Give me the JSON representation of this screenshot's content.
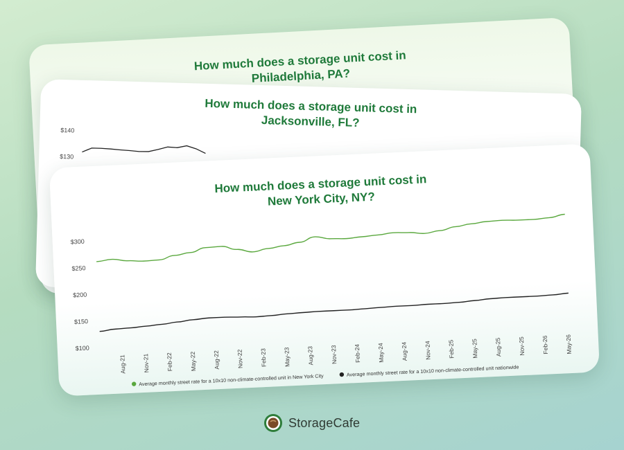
{
  "cards": {
    "back": {
      "title_line1": "How much does a storage unit cost in",
      "title_line2": "Philadelphia, PA?"
    },
    "middle": {
      "title_line1": "How much does a storage unit cost in",
      "title_line2": "Jacksonville, FL?",
      "y_tick_labels": [
        "$140",
        "$130"
      ]
    },
    "front": {
      "title_line1": "How much does a storage unit cost in",
      "title_line2": "New York City, NY?"
    }
  },
  "chart_data": [
    {
      "type": "line",
      "title": "How much does a storage unit cost in Jacksonville, FL?",
      "partially_visible": true,
      "y_ticks": [
        140,
        130
      ],
      "ylim": [
        125,
        140
      ],
      "series": [
        {
          "color": "#222222",
          "values": [
            129,
            131,
            131,
            130.8,
            130.5,
            130.3,
            130,
            130.1,
            131.2,
            132.5,
            132.3,
            133.3,
            132,
            130
          ]
        }
      ]
    },
    {
      "type": "line",
      "title": "How much does a storage unit cost in New York City, NY?",
      "xlabel": "",
      "ylabel": "",
      "ylim": [
        100,
        300
      ],
      "y_ticks": [
        300,
        250,
        200,
        150,
        100
      ],
      "y_tick_labels": [
        "$300",
        "$250",
        "$200",
        "$150",
        "$100"
      ],
      "x_tick_labels": [
        "Aug-21",
        "Nov-21",
        "Feb-22",
        "May-22",
        "Aug-22",
        "Nov-22",
        "Feb-23",
        "May-23",
        "Aug-23",
        "Nov-23",
        "Feb-24",
        "May-24",
        "Aug-24",
        "Nov-24",
        "Feb-25",
        "May-25",
        "Aug-25",
        "Nov-25",
        "Feb-26",
        "May-26"
      ],
      "legend_position": "bottom",
      "grid": false,
      "series": [
        {
          "name": "Average monthly street rate for a 10x10 non-climate-controlled unit in New York City",
          "color": "#5aa83e",
          "values": [
            261,
            264,
            260,
            258,
            259,
            266,
            270,
            278,
            279,
            272,
            266,
            271,
            275,
            280,
            289,
            284,
            283,
            285,
            287,
            290,
            289,
            286,
            290,
            296,
            300,
            303,
            304,
            303,
            303,
            305,
            310
          ]
        },
        {
          "name": "Average monthly street rate for a 10x10 non-climate-controlled unit nationwide",
          "color": "#222222",
          "values": [
            130,
            133,
            134,
            136,
            138,
            141,
            144,
            146,
            146,
            145,
            144,
            145,
            147,
            148,
            149,
            149,
            149,
            150,
            151,
            152,
            152,
            153,
            153,
            154,
            156,
            158,
            159,
            159,
            159,
            160,
            162
          ]
        }
      ]
    }
  ],
  "branding": {
    "logo_text": "StorageCafe",
    "logo_icon": "coffee-cup-icon",
    "accent": "#1f7a3a"
  }
}
